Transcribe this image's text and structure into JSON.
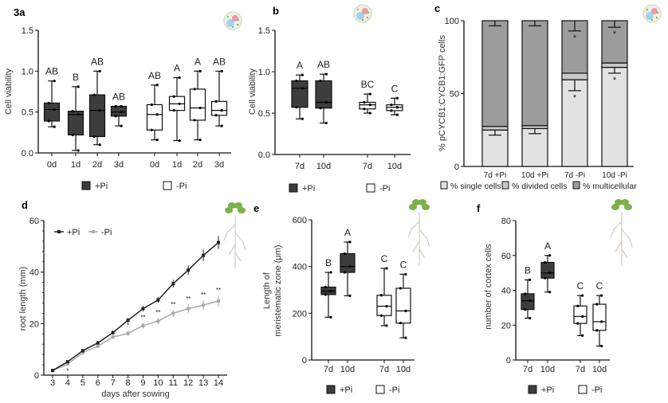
{
  "colors": {
    "plus_pi": "#3d3d3d",
    "minus_pi": "#ffffff",
    "single": "#e2e2e2",
    "divided": "#c8c8c8",
    "multicellular": "#9c9c9c",
    "line_plus": "#222222",
    "line_minus": "#aaaaaa"
  },
  "icons": [
    "cell-icon",
    "cell-icon",
    "cell-icon",
    "plant-seedling-icon",
    "plant-seedling-icon",
    "plant-seedling-icon"
  ],
  "chart_data": [
    {
      "panel": "3a",
      "type": "boxplot",
      "ylabel": "Cell viability",
      "ylim": [
        0,
        1.5
      ],
      "yticks": [
        "0.0",
        "0.5",
        "1.0",
        "1.5"
      ],
      "ytick_values": [
        0,
        0.5,
        1.0,
        1.5
      ],
      "legend": [
        "+Pi",
        "-Pi"
      ],
      "groups": [
        {
          "series": "+Pi",
          "label": "0d",
          "min": 0.32,
          "q1": 0.39,
          "median": 0.53,
          "q3": 0.61,
          "max": 0.88,
          "letter": "AB"
        },
        {
          "series": "+Pi",
          "label": "1d",
          "min": 0.03,
          "q1": 0.22,
          "median": 0.47,
          "q3": 0.51,
          "max": 0.81,
          "letter": "B"
        },
        {
          "series": "+Pi",
          "label": "2d",
          "min": 0.1,
          "q1": 0.2,
          "median": 0.52,
          "q3": 0.71,
          "max": 1.0,
          "letter": "AB"
        },
        {
          "series": "+Pi",
          "label": "3d",
          "min": 0.33,
          "q1": 0.45,
          "median": 0.5,
          "q3": 0.57,
          "max": 0.57,
          "letter": "AB"
        },
        {
          "series": "-Pi",
          "label": "0d",
          "min": 0.16,
          "q1": 0.28,
          "median": 0.47,
          "q3": 0.59,
          "max": 0.83,
          "letter": "AB"
        },
        {
          "series": "-Pi",
          "label": "1d",
          "min": 0.15,
          "q1": 0.52,
          "median": 0.6,
          "q3": 0.69,
          "max": 0.92,
          "letter": "A"
        },
        {
          "series": "-Pi",
          "label": "2d",
          "min": 0.16,
          "q1": 0.4,
          "median": 0.55,
          "q3": 0.78,
          "max": 1.0,
          "letter": "A"
        },
        {
          "series": "-Pi",
          "label": "3d",
          "min": 0.33,
          "q1": 0.46,
          "median": 0.52,
          "q3": 0.63,
          "max": 1.0,
          "letter": "AB"
        }
      ]
    },
    {
      "panel": "b",
      "type": "boxplot",
      "ylabel": "Cell viability",
      "ylim": [
        0,
        1.5
      ],
      "yticks": [
        "0.0",
        "0.5",
        "1.0",
        "1.5"
      ],
      "ytick_values": [
        0,
        0.5,
        1.0,
        1.5
      ],
      "legend": [
        "+Pi",
        "-Pi"
      ],
      "groups": [
        {
          "series": "+Pi",
          "label": "7d",
          "min": 0.43,
          "q1": 0.57,
          "median": 0.8,
          "q3": 0.89,
          "max": 0.96,
          "letter": "A"
        },
        {
          "series": "+Pi",
          "label": "10d",
          "min": 0.38,
          "q1": 0.56,
          "median": 0.63,
          "q3": 0.89,
          "max": 0.97,
          "letter": "AB"
        },
        {
          "series": "-Pi",
          "label": "7d",
          "min": 0.5,
          "q1": 0.55,
          "median": 0.6,
          "q3": 0.63,
          "max": 0.73,
          "letter": "BC"
        },
        {
          "series": "-Pi",
          "label": "10d",
          "min": 0.48,
          "q1": 0.53,
          "median": 0.57,
          "q3": 0.6,
          "max": 0.68,
          "letter": "C"
        }
      ]
    },
    {
      "panel": "c",
      "type": "stacked_bar",
      "ylabel": "% pCYCB1:CYCB1:GFP cells",
      "ylim": [
        0,
        100
      ],
      "yticks": [
        "0",
        "50",
        "100"
      ],
      "ytick_values": [
        0,
        50,
        100
      ],
      "categories": [
        "7d +Pi",
        "10d +Pi",
        "7d -Pi",
        "10d -Pi"
      ],
      "series": [
        {
          "name": "% single cells",
          "values": [
            25,
            26,
            59.5,
            68
          ],
          "err": [
            3.5,
            3.5,
            7.5,
            4
          ]
        },
        {
          "name": "% divided cells",
          "values": [
            2.5,
            2,
            4.5,
            3
          ],
          "err": [
            0,
            0,
            0,
            0
          ]
        },
        {
          "name": "% multicellular",
          "values": [
            72.5,
            72,
            36,
            29
          ],
          "err": [
            3.5,
            3.5,
            7,
            4.5
          ]
        }
      ],
      "significance": [
        "",
        "",
        "*",
        "*"
      ]
    },
    {
      "panel": "d",
      "type": "line",
      "xlabel": "days after sowing",
      "ylabel": "root length  (mm)",
      "xlim": [
        3,
        14
      ],
      "ylim": [
        0,
        60
      ],
      "yticks": [
        "0",
        "20",
        "40",
        "60"
      ],
      "ytick_values": [
        0,
        20,
        40,
        60
      ],
      "x": [
        3,
        4,
        5,
        6,
        7,
        8,
        9,
        10,
        11,
        12,
        13,
        14
      ],
      "legend_position": "top-left",
      "series": [
        {
          "name": "+Pi",
          "values": [
            1.8,
            5.2,
            9.5,
            12.5,
            16.5,
            21.3,
            25.8,
            29.2,
            35.5,
            40.8,
            46.5,
            51.5
          ],
          "err": [
            0.4,
            0.5,
            0.6,
            0.7,
            0.8,
            0.9,
            1.0,
            1.2,
            1.5,
            1.8,
            2.2,
            2.5
          ]
        },
        {
          "name": "-Pi",
          "values": [
            1.8,
            4.3,
            8.7,
            11.2,
            14.8,
            16.2,
            19.2,
            21.0,
            24.0,
            25.8,
            27.2,
            28.8
          ],
          "err": [
            0.4,
            0.5,
            0.6,
            0.7,
            0.8,
            1.0,
            1.1,
            1.2,
            1.4,
            1.8,
            1.9,
            2.2
          ]
        }
      ],
      "significance": [
        "",
        "*",
        "",
        "",
        "",
        "*",
        "**",
        "**",
        "**",
        "**",
        "**",
        "**"
      ]
    },
    {
      "panel": "e",
      "type": "boxplot",
      "ylabel": [
        "Length of",
        "meristematic zone  (μm)"
      ],
      "ylim": [
        0,
        600
      ],
      "yticks": [
        "0",
        "200",
        "400",
        "600"
      ],
      "ytick_values": [
        0,
        200,
        400,
        600
      ],
      "legend": [
        "+Pi",
        "-Pi"
      ],
      "groups": [
        {
          "series": "+Pi",
          "label": "7d",
          "min": 183,
          "q1": 280,
          "median": 295,
          "q3": 312,
          "max": 375,
          "letter": "B"
        },
        {
          "series": "+Pi",
          "label": "10d",
          "min": 275,
          "q1": 375,
          "median": 400,
          "q3": 455,
          "max": 505,
          "letter": "A"
        },
        {
          "series": "-Pi",
          "label": "7d",
          "min": 147,
          "q1": 190,
          "median": 230,
          "q3": 277,
          "max": 392,
          "letter": "C"
        },
        {
          "series": "-Pi",
          "label": "10d",
          "min": 95,
          "q1": 158,
          "median": 210,
          "q3": 307,
          "max": 367,
          "letter": "C"
        }
      ]
    },
    {
      "panel": "f",
      "type": "boxplot",
      "ylabel": "number of cortex cells",
      "ylim": [
        0,
        80
      ],
      "yticks": [
        "0",
        "20",
        "40",
        "60",
        "80"
      ],
      "ytick_values": [
        0,
        20,
        40,
        60,
        80
      ],
      "legend": [
        "+Pi",
        "-Pi"
      ],
      "groups": [
        {
          "series": "+Pi",
          "label": "7d",
          "min": 24,
          "q1": 29,
          "median": 34,
          "q3": 38,
          "max": 46,
          "letter": "B"
        },
        {
          "series": "+Pi",
          "label": "10d",
          "min": 39,
          "q1": 47,
          "median": 50,
          "q3": 56,
          "max": 60,
          "letter": "A"
        },
        {
          "series": "-Pi",
          "label": "7d",
          "min": 14,
          "q1": 21,
          "median": 25,
          "q3": 31,
          "max": 37,
          "letter": "C"
        },
        {
          "series": "-Pi",
          "label": "10d",
          "min": 8,
          "q1": 17,
          "median": 22,
          "q3": 32,
          "max": 37,
          "letter": "C"
        }
      ]
    }
  ]
}
